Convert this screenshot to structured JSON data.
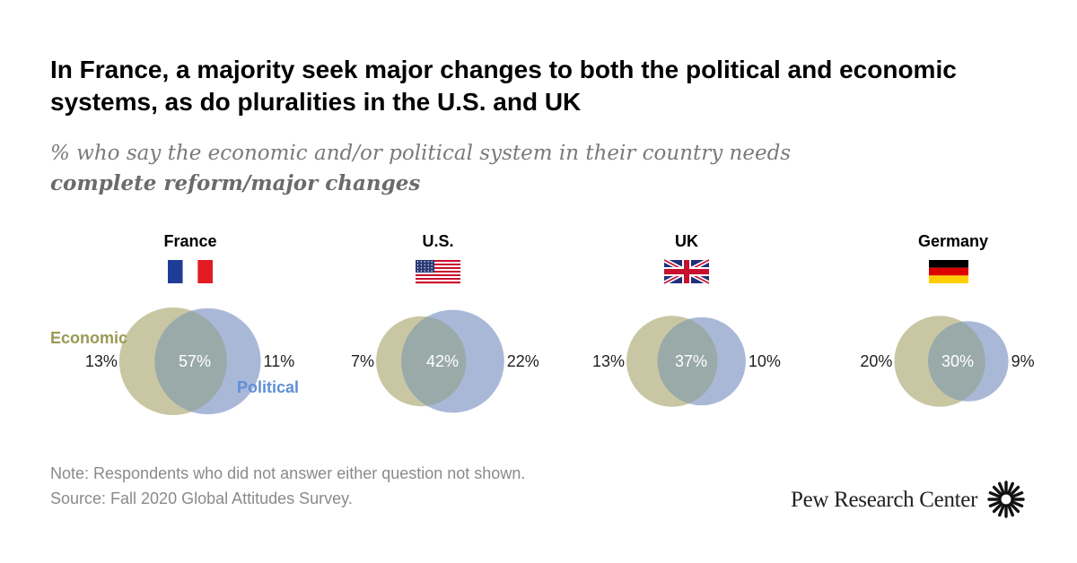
{
  "title": "In France, a majority seek major changes to both the political and economic systems, as do pluralities in the U.S. and UK",
  "subtitle_line1": "% who say the economic and/or political system in their country needs",
  "subtitle_line2": "complete reform/major changes",
  "colors": {
    "economic": "#c9c7a3",
    "political": "#aab8d8",
    "overlap": "#9aaaa8",
    "economic_label": "#9a9a55",
    "political_label": "#5f8fd6"
  },
  "chart_data": {
    "type": "venn",
    "legend": {
      "economic": "Economic",
      "political": "Political"
    },
    "countries": [
      {
        "name": "France",
        "flag": "france",
        "economic_only": 13,
        "both": 57,
        "political_only": 11,
        "labels": {
          "economic_only": "13%",
          "both": "57%",
          "political_only": "11%"
        }
      },
      {
        "name": "U.S.",
        "flag": "usa",
        "economic_only": 7,
        "both": 42,
        "political_only": 22,
        "labels": {
          "economic_only": "7%",
          "both": "42%",
          "political_only": "22%"
        }
      },
      {
        "name": "UK",
        "flag": "uk",
        "economic_only": 13,
        "both": 37,
        "political_only": 10,
        "labels": {
          "economic_only": "13%",
          "both": "37%",
          "political_only": "10%"
        }
      },
      {
        "name": "Germany",
        "flag": "germany",
        "economic_only": 20,
        "both": 30,
        "political_only": 9,
        "labels": {
          "economic_only": "20%",
          "both": "30%",
          "political_only": "9%"
        }
      }
    ]
  },
  "note": "Note: Respondents who did not answer either question not shown.",
  "source": "Source: Fall 2020 Global Attitudes Survey.",
  "brand": "Pew Research Center"
}
